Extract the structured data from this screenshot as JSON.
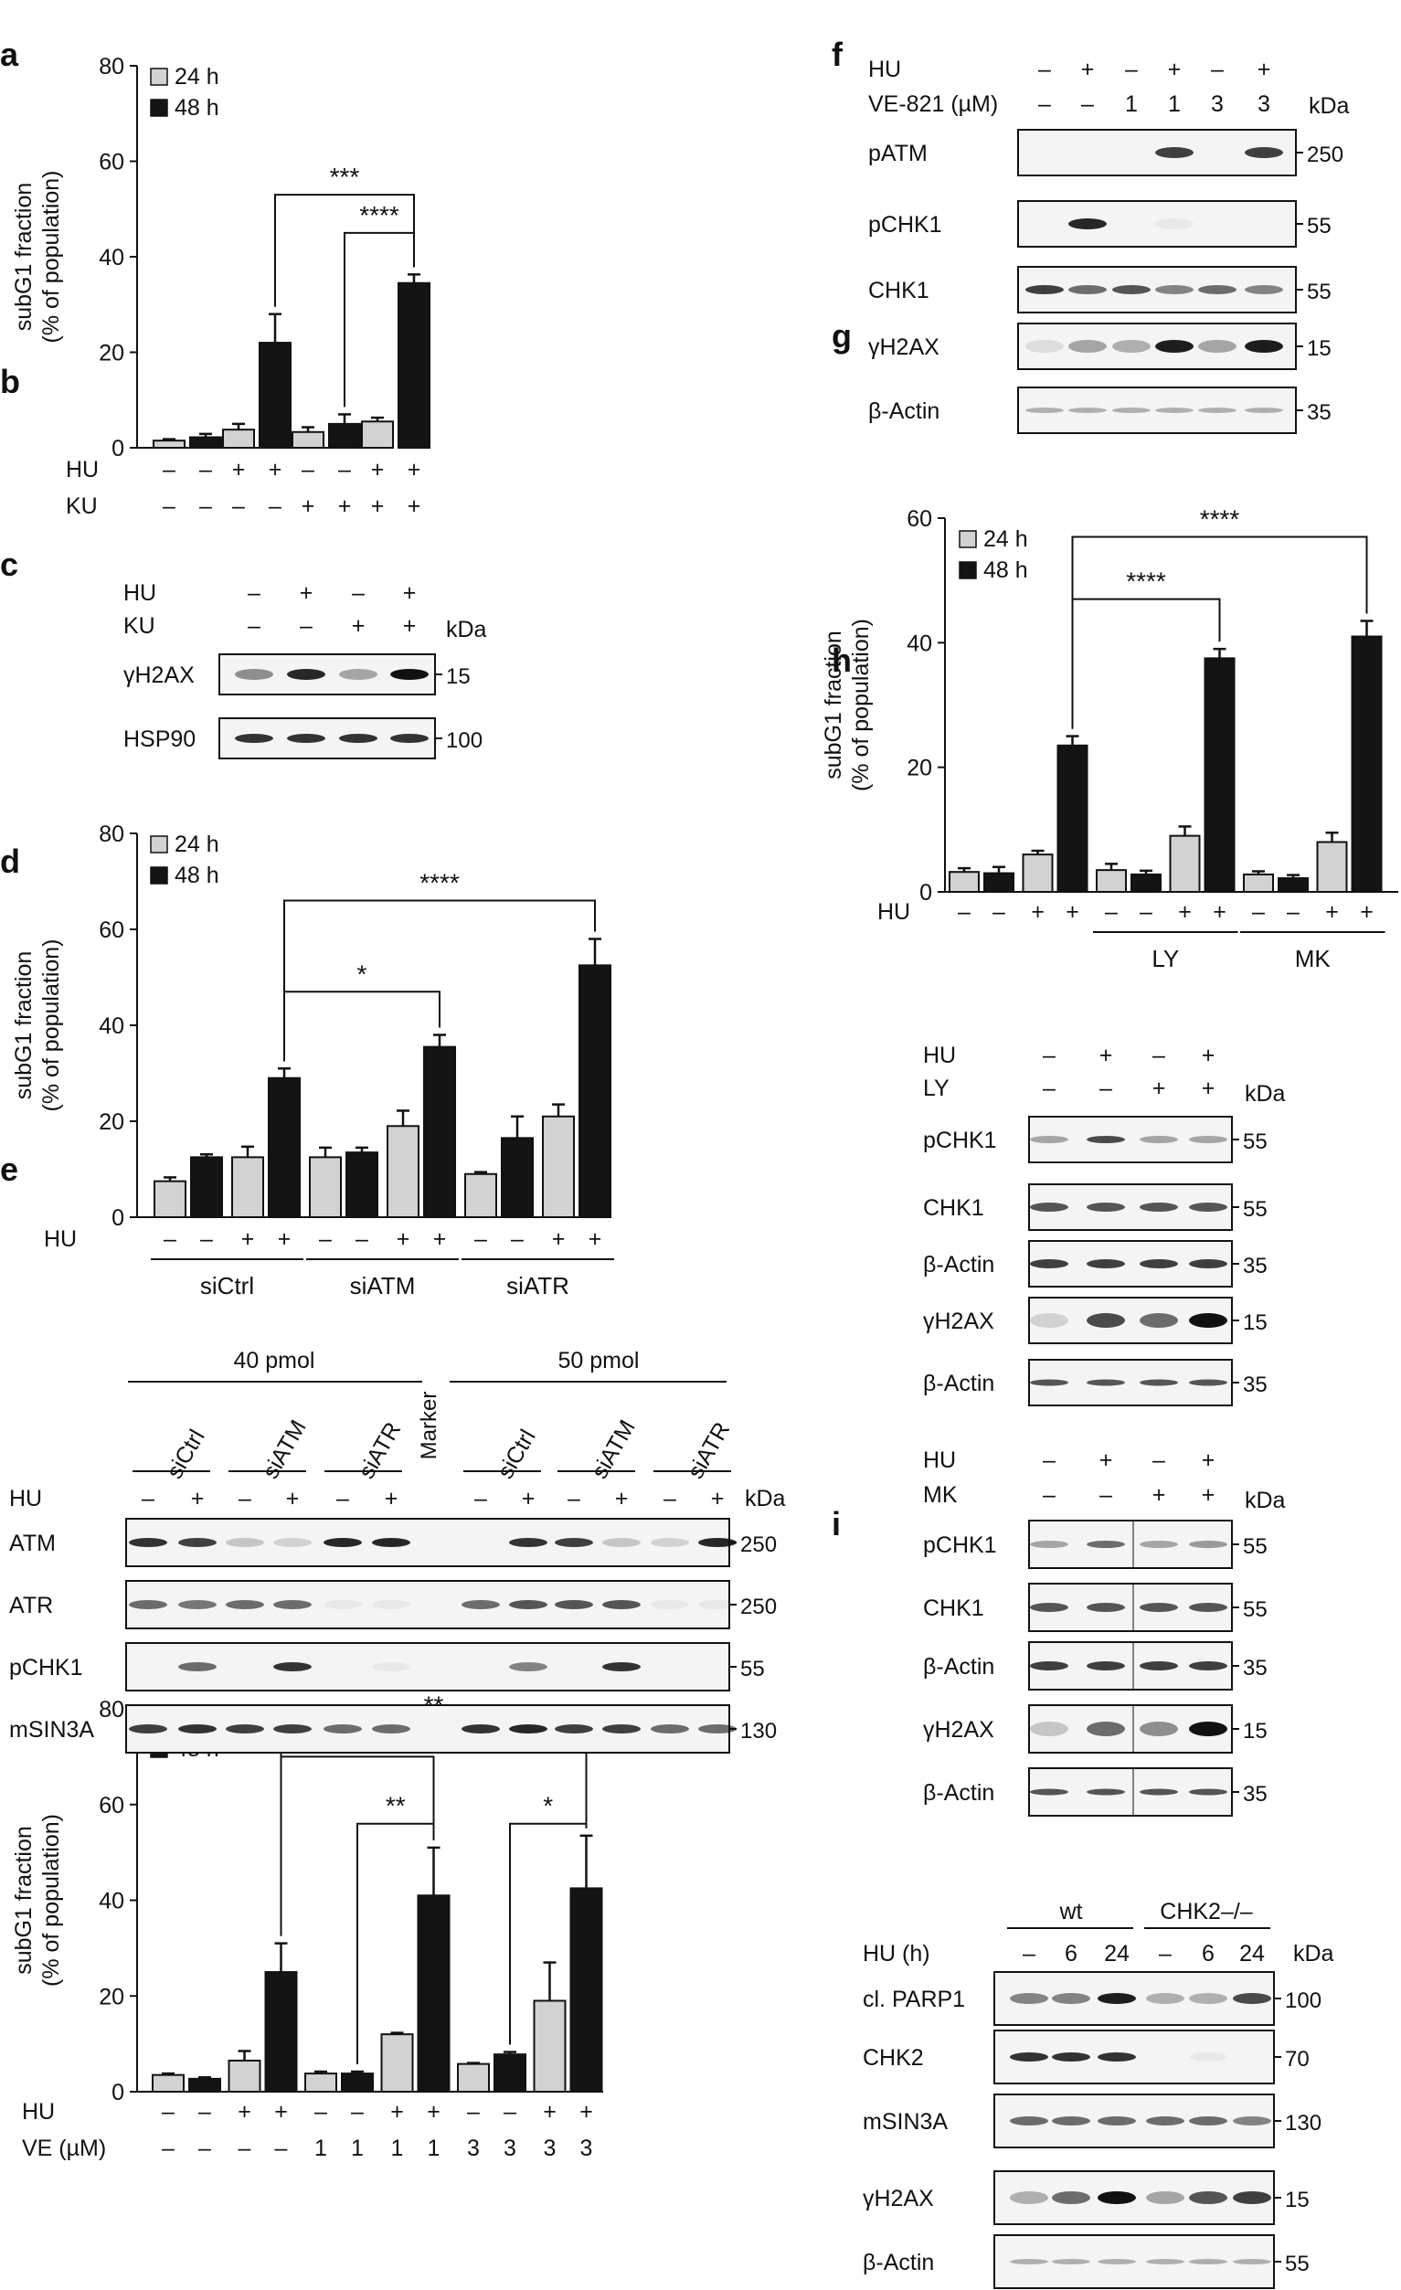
{
  "panel_labels": {
    "a": "a",
    "b": "b",
    "c": "c",
    "d": "d",
    "e": "e",
    "f": "f",
    "g": "g",
    "h": "h",
    "i": "i"
  },
  "common": {
    "kda": "kDa",
    "plus": "+",
    "minus": "–"
  },
  "chart_data": [
    {
      "id": "a",
      "type": "bar",
      "ylabel": "subG1 fraction",
      "ylabel2": "(% of population)",
      "ylim": [
        0,
        80
      ],
      "yticks": [
        0,
        20,
        40,
        60,
        80
      ],
      "legend": [
        "24 h",
        "48 h"
      ],
      "groups": [
        {
          "mean24": 1.5,
          "err24": 0.3,
          "mean48": 2.2,
          "err48": 0.7
        },
        {
          "mean24": 3.8,
          "err24": 1.2,
          "mean48": 22,
          "err48": 6
        },
        {
          "mean24": 3.3,
          "err24": 1,
          "mean48": 5,
          "err48": 2
        },
        {
          "mean24": 5.5,
          "err24": 0.8,
          "mean48": 34.5,
          "err48": 1.8
        }
      ],
      "conditions": [
        {
          "label": "HU",
          "values": [
            "–",
            "+",
            "–",
            "+"
          ]
        },
        {
          "label": "KU",
          "values": [
            "–",
            "–",
            "+",
            "+"
          ]
        }
      ],
      "brackets": [
        {
          "from": 1,
          "to": 3,
          "y": 53,
          "label": "***"
        },
        {
          "from": 2,
          "to": 3,
          "y": 45,
          "label": "****"
        }
      ]
    },
    {
      "id": "c",
      "type": "bar",
      "ylabel": "subG1 fraction",
      "ylabel2": "(% of population)",
      "ylim": [
        0,
        80
      ],
      "yticks": [
        0,
        20,
        40,
        60,
        80
      ],
      "legend": [
        "24 h",
        "48 h"
      ],
      "groups": [
        {
          "mean24": 7.5,
          "err24": 0.8,
          "mean48": 12.5,
          "err48": 0.6
        },
        {
          "mean24": 12.5,
          "err24": 2.2,
          "mean48": 29,
          "err48": 2
        },
        {
          "mean24": 12.5,
          "err24": 2,
          "mean48": 13.5,
          "err48": 1
        },
        {
          "mean24": 19,
          "err24": 3.2,
          "mean48": 35.5,
          "err48": 2.5
        },
        {
          "mean24": 9,
          "err24": 0.4,
          "mean48": 16.5,
          "err48": 4.5
        },
        {
          "mean24": 21,
          "err24": 2.5,
          "mean48": 52.5,
          "err48": 5.5
        }
      ],
      "conditions": [
        {
          "label": "HU",
          "values": [
            "–",
            "+",
            "–",
            "+",
            "–",
            "+"
          ]
        }
      ],
      "group_labels": [
        {
          "label": "siCtrl",
          "span": [
            0,
            1
          ]
        },
        {
          "label": "siATM",
          "span": [
            2,
            3
          ]
        },
        {
          "label": "siATR",
          "span": [
            4,
            5
          ]
        }
      ],
      "brackets": [
        {
          "from": 1,
          "to": 3,
          "y": 47,
          "label": "*"
        },
        {
          "from": 1,
          "to": 5,
          "y": 66,
          "label": "****"
        }
      ]
    },
    {
      "id": "e",
      "type": "bar",
      "ylabel": "subG1 fraction",
      "ylabel2": "(% of population)",
      "ylim": [
        0,
        80
      ],
      "yticks": [
        0,
        20,
        40,
        60,
        80
      ],
      "legend": [
        "24 h",
        "48 h"
      ],
      "groups": [
        {
          "mean24": 3.5,
          "err24": 0.3,
          "mean48": 2.7,
          "err48": 0.3
        },
        {
          "mean24": 6.5,
          "err24": 2,
          "mean48": 25,
          "err48": 6
        },
        {
          "mean24": 3.8,
          "err24": 0.4,
          "mean48": 3.8,
          "err48": 0.4
        },
        {
          "mean24": 12,
          "err24": 0.3,
          "mean48": 41,
          "err48": 10
        },
        {
          "mean24": 5.8,
          "err24": 0.2,
          "mean48": 7.8,
          "err48": 0.5
        },
        {
          "mean24": 19,
          "err24": 8,
          "mean48": 42.5,
          "err48": 11
        }
      ],
      "conditions": [
        {
          "label": "HU",
          "values": [
            "–",
            "+",
            "–",
            "+",
            "–",
            "+"
          ]
        },
        {
          "label": "VE (µM)",
          "values": [
            "–",
            "–",
            "1",
            "1",
            "3",
            "3"
          ]
        }
      ],
      "brackets": [
        {
          "from": 1,
          "to": 3,
          "y": 70,
          "label": "**"
        },
        {
          "from": 1,
          "to": 5,
          "y": 77,
          "label": "**"
        },
        {
          "from": 2,
          "to": 3,
          "y": 56,
          "label": "**"
        },
        {
          "from": 4,
          "to": 5,
          "y": 56,
          "label": "*"
        }
      ]
    },
    {
      "id": "g",
      "type": "bar",
      "ylabel": "subG1 fraction",
      "ylabel2": "(% of population)",
      "ylim": [
        0,
        60
      ],
      "yticks": [
        0,
        20,
        40,
        60
      ],
      "legend": [
        "24 h",
        "48 h"
      ],
      "groups": [
        {
          "mean24": 3.2,
          "err24": 0.6,
          "mean48": 3,
          "err48": 1
        },
        {
          "mean24": 6,
          "err24": 0.6,
          "mean48": 23.5,
          "err48": 1.5
        },
        {
          "mean24": 3.5,
          "err24": 1,
          "mean48": 2.8,
          "err48": 0.6
        },
        {
          "mean24": 9,
          "err24": 1.5,
          "mean48": 37.5,
          "err48": 1.5
        },
        {
          "mean24": 2.8,
          "err24": 0.5,
          "mean48": 2.2,
          "err48": 0.5
        },
        {
          "mean24": 8,
          "err24": 1.5,
          "mean48": 41,
          "err48": 2.5
        }
      ],
      "conditions": [
        {
          "label": "HU",
          "values": [
            "–",
            "+",
            "–",
            "+",
            "–",
            "+"
          ]
        }
      ],
      "group_labels": [
        {
          "label": "LY",
          "span": [
            2,
            3
          ]
        },
        {
          "label": "MK",
          "span": [
            4,
            5
          ]
        }
      ],
      "brackets": [
        {
          "from": 1,
          "to": 3,
          "y": 47,
          "label": "****"
        },
        {
          "from": 1,
          "to": 5,
          "y": 57,
          "label": "****"
        }
      ]
    }
  ],
  "blots": {
    "b": {
      "conditions": [
        {
          "label": "HU",
          "values": [
            "–",
            "+",
            "–",
            "+"
          ]
        },
        {
          "label": "KU",
          "values": [
            "–",
            "–",
            "+",
            "+"
          ]
        }
      ],
      "rows": [
        {
          "label": "γH2AX",
          "marker": "15"
        },
        {
          "label": "HSP90",
          "marker": "100"
        }
      ]
    },
    "d": {
      "groups": [
        "40 pmol",
        "50 pmol"
      ],
      "si": [
        "siCtrl",
        "siATM",
        "siATR"
      ],
      "marker_lane": "Marker",
      "hu_label": "HU",
      "rows": [
        {
          "label": "ATM",
          "marker": "250"
        },
        {
          "label": "ATR",
          "marker": "250"
        },
        {
          "label": "pCHK1",
          "marker": "55"
        },
        {
          "label": "mSIN3A",
          "marker": "130"
        }
      ]
    },
    "f": {
      "conditions": [
        {
          "label": "HU",
          "values": [
            "–",
            "+",
            "–",
            "+",
            "–",
            "+"
          ]
        },
        {
          "label": "VE-821 (µM)",
          "values": [
            "–",
            "–",
            "1",
            "1",
            "3",
            "3"
          ]
        }
      ],
      "rows": [
        {
          "label": "pATM",
          "marker": "250"
        },
        {
          "label": "pCHK1",
          "marker": "55"
        },
        {
          "label": "CHK1",
          "marker": "55"
        },
        {
          "label": "γH2AX",
          "marker": "15"
        },
        {
          "label": "β-Actin",
          "marker": "35"
        }
      ]
    },
    "h1": {
      "conditions": [
        {
          "label": "HU",
          "values": [
            "–",
            "+",
            "–",
            "+"
          ]
        },
        {
          "label": "LY",
          "values": [
            "–",
            "–",
            "+",
            "+"
          ]
        }
      ],
      "rows": [
        {
          "label": "pCHK1",
          "marker": "55"
        },
        {
          "label": "CHK1",
          "marker": "55"
        },
        {
          "label": "β-Actin",
          "marker": "35"
        },
        {
          "label": "γH2AX",
          "marker": "15"
        },
        {
          "label": "β-Actin",
          "marker": "35"
        }
      ]
    },
    "h2": {
      "conditions": [
        {
          "label": "HU",
          "values": [
            "–",
            "+",
            "–",
            "+"
          ]
        },
        {
          "label": "MK",
          "values": [
            "–",
            "–",
            "+",
            "+"
          ]
        }
      ],
      "rows": [
        {
          "label": "pCHK1",
          "marker": "55"
        },
        {
          "label": "CHK1",
          "marker": "55"
        },
        {
          "label": "β-Actin",
          "marker": "35"
        },
        {
          "label": "γH2AX",
          "marker": "15"
        },
        {
          "label": "β-Actin",
          "marker": "35"
        }
      ]
    },
    "i": {
      "groups": [
        "wt",
        "CHK2–/–"
      ],
      "hu_label": "HU (h)",
      "hu_values": [
        "–",
        "6",
        "24",
        "–",
        "6",
        "24"
      ],
      "rows": [
        {
          "label": "cl. PARP1",
          "marker": "100"
        },
        {
          "label": "CHK2",
          "marker": "70"
        },
        {
          "label": "mSIN3A",
          "marker": "130"
        },
        {
          "label": "γH2AX",
          "marker": "15"
        },
        {
          "label": "β-Actin",
          "marker": "55"
        }
      ]
    }
  }
}
